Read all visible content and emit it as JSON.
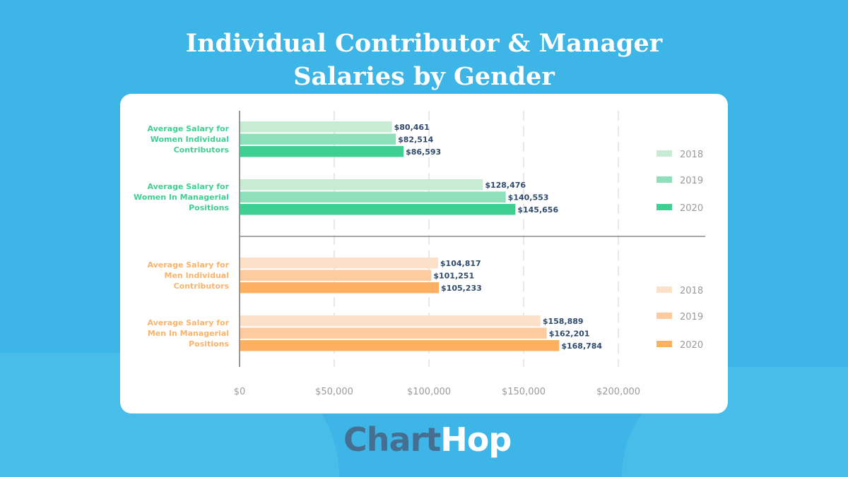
{
  "title_line1": "Individual Contributor & Manager",
  "title_line2": "Salaries by Gender",
  "logo": {
    "part1": "Chart",
    "part2": "Hop"
  },
  "colors": {
    "background": "#3db5e6",
    "women_label": "#3ecf92",
    "men_label": "#fbb269",
    "value_label": "#2f4a6b"
  },
  "chart_data": {
    "type": "bar",
    "orientation": "horizontal",
    "xlim": [
      0,
      200000
    ],
    "x_ticks": [
      "$0",
      "$50,000",
      "$100,000",
      "$150,000",
      "$200,000"
    ],
    "x_tick_values": [
      0,
      50000,
      100000,
      150000,
      200000
    ],
    "grid": "vertical dashed",
    "groups": [
      {
        "label": "Average Salary for Women Individual Contributors",
        "lines": [
          "Average Salary for",
          "Women Individual",
          "Contributors"
        ],
        "gender": "women",
        "values": [
          80461,
          82514,
          86593
        ],
        "labels": [
          "$80,461",
          "$82,514",
          "$86,593"
        ]
      },
      {
        "label": "Average Salary for Women In Managerial Positions",
        "lines": [
          "Average Salary for",
          "Women In Managerial",
          "Positions"
        ],
        "gender": "women",
        "values": [
          128476,
          140553,
          145656
        ],
        "labels": [
          "$128,476",
          "$140,553",
          "$145,656"
        ]
      },
      {
        "label": "Average Salary for Men Individual Contributors",
        "lines": [
          "Average Salary for",
          "Men Individual",
          "Contributors"
        ],
        "gender": "men",
        "values": [
          104817,
          101251,
          105233
        ],
        "labels": [
          "$104,817",
          "$101,251",
          "$105,233"
        ]
      },
      {
        "label": "Average Salary for Men In Managerial Positions",
        "lines": [
          "Average Salary for",
          "Men In Managerial",
          "Positions"
        ],
        "gender": "men",
        "values": [
          158889,
          162201,
          168784
        ],
        "labels": [
          "$158,889",
          "$162,201",
          "$168,784"
        ]
      }
    ],
    "series": [
      {
        "name": "2018",
        "women_color": "#c8ecd3",
        "men_color": "#fde0c8"
      },
      {
        "name": "2019",
        "women_color": "#8ee0bb",
        "men_color": "#fecb9e"
      },
      {
        "name": "2020",
        "women_color": "#3ecf92",
        "men_color": "#feb062"
      }
    ],
    "legends": [
      {
        "gender": "women",
        "entries": [
          "2018",
          "2019",
          "2020"
        ],
        "placement": "right-top"
      },
      {
        "gender": "men",
        "entries": [
          "2018",
          "2019",
          "2020"
        ],
        "placement": "right-bottom"
      }
    ]
  }
}
